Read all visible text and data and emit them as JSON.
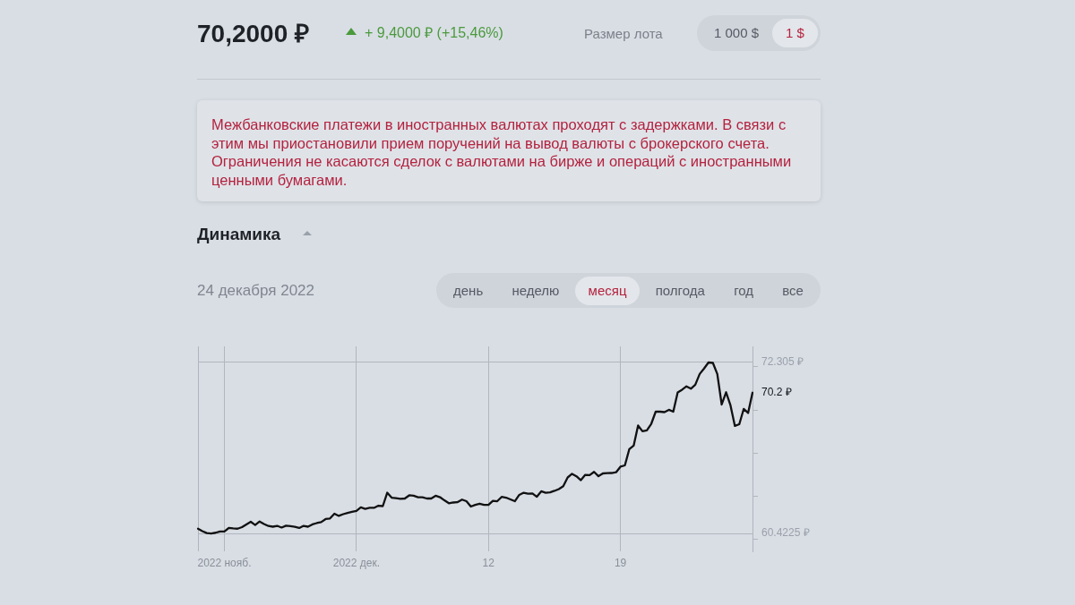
{
  "chart_data": {
    "type": "line",
    "title": "Динамика",
    "subtitle": "24 декабря 2022",
    "annotations": [
      "70,2000 ₽",
      "+ 9,4000 ₽ (+15,46%)",
      "Размер лота",
      "1 000 $",
      "1 $",
      "Межбанковские платежи в иностранных валютах проходят с задержками. В связи с этим мы приостановили прием поручений на вывод валюты с брокерского счета. Ограничения не касаются сделок с валютами на бирже и операций с иностранными ценными бумагами.",
      "день",
      "неделю",
      "месяц",
      "полгода",
      "год",
      "все"
    ],
    "categories": [
      null,
      null,
      null,
      null,
      null,
      null,
      "2022 нояб.",
      null,
      null,
      null,
      null,
      null,
      null,
      null,
      null,
      null,
      null,
      null,
      null,
      null,
      null,
      null,
      null,
      null,
      null,
      null,
      null,
      null,
      null,
      null,
      null,
      null,
      null,
      null,
      null,
      null,
      "2022 дек.",
      null,
      null,
      null,
      null,
      null,
      null,
      null,
      null,
      null,
      null,
      null,
      null,
      null,
      null,
      null,
      null,
      null,
      null,
      null,
      null,
      null,
      null,
      null,
      null,
      null,
      null,
      null,
      null,
      null,
      "12",
      null,
      null,
      null,
      null,
      null,
      null,
      null,
      null,
      null,
      null,
      null,
      null,
      null,
      null,
      null,
      null,
      null,
      null,
      null,
      null,
      null,
      null,
      null,
      null,
      null,
      null,
      null,
      null,
      null,
      "19",
      null,
      null,
      null,
      null,
      null,
      null,
      null,
      null,
      null,
      null,
      null,
      null,
      null,
      null,
      null,
      null,
      null,
      null,
      null,
      null,
      null,
      null,
      null,
      null,
      null,
      null,
      null,
      null,
      null,
      null
    ],
    "series": [
      {
        "color": "#111111",
        "values": [
          60.75,
          60.58,
          60.45,
          60.42,
          60.47,
          60.56,
          60.55,
          60.8,
          60.77,
          60.75,
          60.86,
          61.05,
          61.23,
          61.01,
          61.25,
          61.08,
          60.94,
          60.89,
          60.95,
          60.83,
          60.96,
          60.93,
          60.88,
          60.8,
          60.95,
          60.89,
          61.05,
          61.14,
          61.21,
          61.42,
          61.46,
          61.79,
          61.64,
          61.76,
          61.85,
          61.92,
          61.98,
          62.23,
          62.13,
          62.2,
          62.2,
          62.35,
          62.32,
          63.25,
          62.91,
          62.87,
          62.82,
          62.85,
          63.07,
          63.04,
          62.94,
          62.94,
          62.85,
          62.85,
          63.04,
          62.94,
          62.72,
          62.52,
          62.57,
          62.6,
          62.77,
          62.66,
          62.29,
          62.41,
          62.49,
          62.41,
          62.41,
          62.69,
          62.66,
          62.96,
          62.91,
          62.79,
          62.66,
          63.1,
          63.25,
          63.18,
          63.2,
          62.97,
          63.35,
          63.25,
          63.28,
          63.38,
          63.5,
          63.7,
          64.31,
          64.56,
          64.39,
          64.12,
          64.49,
          64.47,
          64.7,
          64.4,
          64.59,
          64.61,
          64.62,
          64.67,
          65.06,
          65.15,
          66.27,
          66.52,
          67.92,
          67.52,
          67.58,
          68.04,
          68.88,
          68.88,
          68.85,
          69.01,
          68.88,
          70.22,
          70.41,
          70.64,
          70.48,
          70.75,
          71.5,
          71.88,
          72.3,
          72.27,
          71.5,
          69.38,
          70.23,
          69.32,
          67.89,
          68.01,
          69.07,
          68.79,
          70.2
        ],
        "value_labels": [
          null,
          null,
          null,
          null,
          null,
          null,
          null,
          null,
          null,
          null,
          null,
          null,
          null,
          null,
          null,
          null,
          null,
          null,
          null,
          null,
          null,
          null,
          null,
          null,
          null,
          null,
          null,
          null,
          null,
          null,
          null,
          null,
          null,
          null,
          null,
          null,
          null,
          null,
          null,
          null,
          null,
          null,
          null,
          null,
          null,
          null,
          null,
          null,
          null,
          null,
          null,
          null,
          null,
          null,
          null,
          null,
          null,
          null,
          null,
          null,
          null,
          null,
          null,
          null,
          null,
          null,
          null,
          null,
          null,
          null,
          null,
          null,
          null,
          null,
          null,
          null,
          null,
          null,
          null,
          null,
          null,
          null,
          null,
          null,
          null,
          null,
          null,
          null,
          null,
          null,
          null,
          null,
          null,
          null,
          null,
          null,
          null,
          null,
          null,
          null,
          null,
          null,
          null,
          null,
          null,
          null,
          null,
          null,
          null,
          null,
          null,
          null,
          null,
          null,
          null,
          null,
          null,
          null,
          null,
          null,
          null,
          null,
          null,
          null,
          null,
          null,
          "70.2 ₽"
        ]
      }
    ],
    "ylim": [
      59.18,
      73.42
    ],
    "yticks": [
      {
        "value": 60,
        "label": null
      },
      {
        "value": 60.4225,
        "label": "60.4225 ₽"
      },
      {
        "value": 63,
        "label": null
      },
      {
        "value": 66,
        "label": null
      },
      {
        "value": 69,
        "label": null
      },
      {
        "value": 72,
        "label": null
      },
      {
        "value": 72.305,
        "label": "72.305 ₽"
      }
    ],
    "grid": true
  }
}
